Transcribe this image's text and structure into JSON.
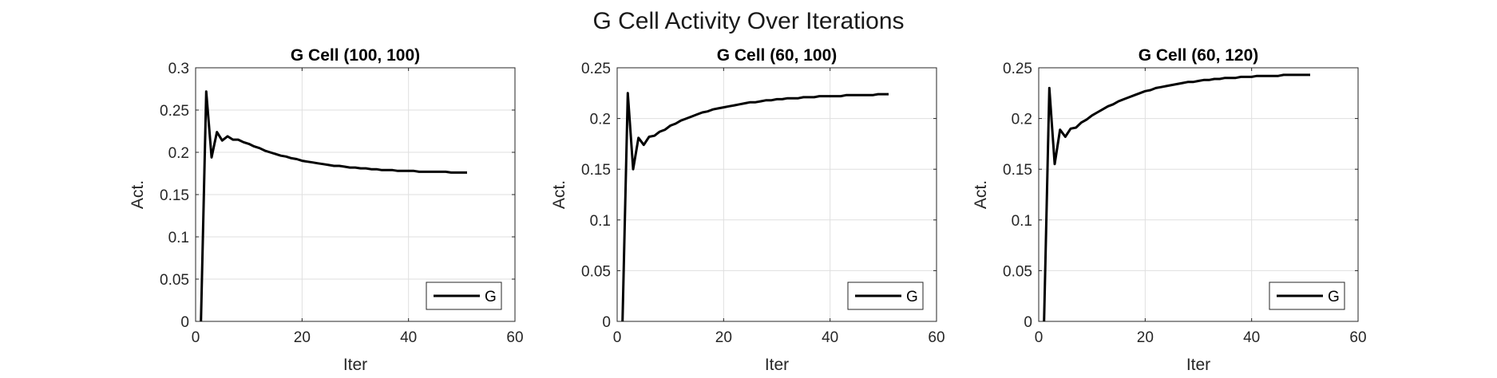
{
  "figure": {
    "suptitle": "G Cell Activity Over Iterations"
  },
  "chart_data": [
    {
      "type": "line",
      "title": "G Cell (100, 100)",
      "xlabel": "Iter",
      "ylabel": "Act.",
      "xlim": [
        0,
        60
      ],
      "ylim": [
        0,
        0.3
      ],
      "xticks": [
        "0",
        "20",
        "40",
        "60"
      ],
      "yticks": [
        "0",
        "0.05",
        "0.1",
        "0.15",
        "0.2",
        "0.25",
        "0.3"
      ],
      "grid": true,
      "legend_position": "bottom-right",
      "series": [
        {
          "name": "G",
          "color": "#000000",
          "x": [
            1,
            2,
            3,
            4,
            5,
            6,
            7,
            8,
            9,
            10,
            11,
            12,
            13,
            14,
            15,
            16,
            17,
            18,
            19,
            20,
            21,
            22,
            23,
            24,
            25,
            26,
            27,
            28,
            29,
            30,
            31,
            32,
            33,
            34,
            35,
            36,
            37,
            38,
            39,
            40,
            41,
            42,
            43,
            44,
            45,
            46,
            47,
            48,
            49,
            50,
            51
          ],
          "y": [
            0,
            0.272,
            0.194,
            0.224,
            0.214,
            0.219,
            0.215,
            0.215,
            0.212,
            0.21,
            0.207,
            0.205,
            0.202,
            0.2,
            0.198,
            0.196,
            0.195,
            0.193,
            0.192,
            0.19,
            0.189,
            0.188,
            0.187,
            0.186,
            0.185,
            0.184,
            0.184,
            0.183,
            0.182,
            0.182,
            0.181,
            0.181,
            0.18,
            0.18,
            0.179,
            0.179,
            0.179,
            0.178,
            0.178,
            0.178,
            0.178,
            0.177,
            0.177,
            0.177,
            0.177,
            0.177,
            0.177,
            0.176,
            0.176,
            0.176,
            0.176
          ]
        }
      ]
    },
    {
      "type": "line",
      "title": "G Cell (60, 100)",
      "xlabel": "Iter",
      "ylabel": "Act.",
      "xlim": [
        0,
        60
      ],
      "ylim": [
        0,
        0.25
      ],
      "xticks": [
        "0",
        "20",
        "40",
        "60"
      ],
      "yticks": [
        "0",
        "0.05",
        "0.1",
        "0.15",
        "0.2",
        "0.25"
      ],
      "grid": true,
      "legend_position": "bottom-right",
      "series": [
        {
          "name": "G",
          "color": "#000000",
          "x": [
            1,
            2,
            3,
            4,
            5,
            6,
            7,
            8,
            9,
            10,
            11,
            12,
            13,
            14,
            15,
            16,
            17,
            18,
            19,
            20,
            21,
            22,
            23,
            24,
            25,
            26,
            27,
            28,
            29,
            30,
            31,
            32,
            33,
            34,
            35,
            36,
            37,
            38,
            39,
            40,
            41,
            42,
            43,
            44,
            45,
            46,
            47,
            48,
            49,
            50,
            51
          ],
          "y": [
            0,
            0.225,
            0.15,
            0.181,
            0.174,
            0.182,
            0.183,
            0.187,
            0.189,
            0.193,
            0.195,
            0.198,
            0.2,
            0.202,
            0.204,
            0.206,
            0.207,
            0.209,
            0.21,
            0.211,
            0.212,
            0.213,
            0.214,
            0.215,
            0.216,
            0.216,
            0.217,
            0.218,
            0.218,
            0.219,
            0.219,
            0.22,
            0.22,
            0.22,
            0.221,
            0.221,
            0.221,
            0.222,
            0.222,
            0.222,
            0.222,
            0.222,
            0.223,
            0.223,
            0.223,
            0.223,
            0.223,
            0.223,
            0.224,
            0.224,
            0.224
          ]
        }
      ]
    },
    {
      "type": "line",
      "title": "G Cell (60, 120)",
      "xlabel": "Iter",
      "ylabel": "Act.",
      "xlim": [
        0,
        60
      ],
      "ylim": [
        0,
        0.25
      ],
      "xticks": [
        "0",
        "20",
        "40",
        "60"
      ],
      "yticks": [
        "0",
        "0.05",
        "0.1",
        "0.15",
        "0.2",
        "0.25"
      ],
      "grid": true,
      "legend_position": "bottom-right",
      "series": [
        {
          "name": "G",
          "color": "#000000",
          "x": [
            1,
            2,
            3,
            4,
            5,
            6,
            7,
            8,
            9,
            10,
            11,
            12,
            13,
            14,
            15,
            16,
            17,
            18,
            19,
            20,
            21,
            22,
            23,
            24,
            25,
            26,
            27,
            28,
            29,
            30,
            31,
            32,
            33,
            34,
            35,
            36,
            37,
            38,
            39,
            40,
            41,
            42,
            43,
            44,
            45,
            46,
            47,
            48,
            49,
            50,
            51
          ],
          "y": [
            0,
            0.23,
            0.155,
            0.189,
            0.182,
            0.19,
            0.191,
            0.196,
            0.199,
            0.203,
            0.206,
            0.209,
            0.212,
            0.214,
            0.217,
            0.219,
            0.221,
            0.223,
            0.225,
            0.227,
            0.228,
            0.23,
            0.231,
            0.232,
            0.233,
            0.234,
            0.235,
            0.236,
            0.236,
            0.237,
            0.238,
            0.238,
            0.239,
            0.239,
            0.24,
            0.24,
            0.24,
            0.241,
            0.241,
            0.241,
            0.242,
            0.242,
            0.242,
            0.242,
            0.242,
            0.243,
            0.243,
            0.243,
            0.243,
            0.243,
            0.243
          ]
        }
      ]
    }
  ]
}
